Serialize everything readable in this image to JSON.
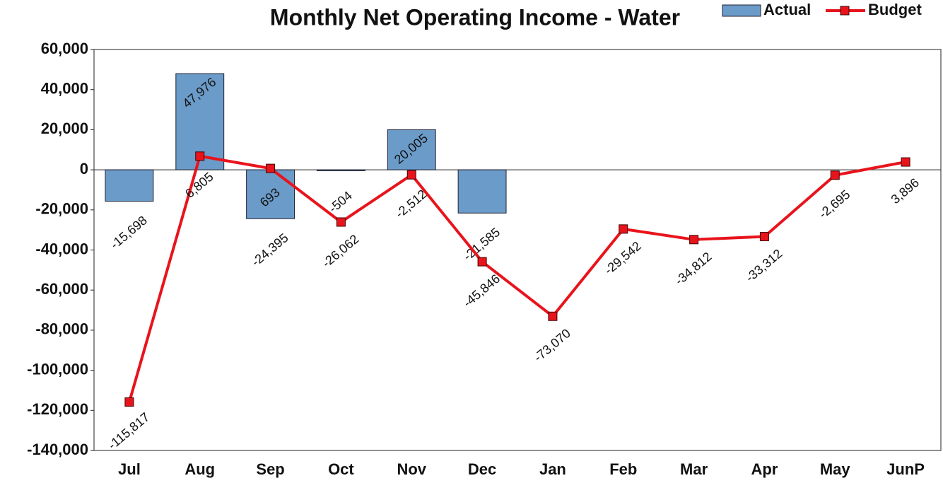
{
  "chart_data": {
    "type": "bar_line",
    "title": "Monthly Net Operating Income - Water",
    "categories": [
      "Jul",
      "Aug",
      "Sep",
      "Oct",
      "Nov",
      "Dec",
      "Jan",
      "Feb",
      "Mar",
      "Apr",
      "May",
      "JunP"
    ],
    "series": [
      {
        "name": "Actual",
        "type": "bar",
        "color": "#6b9bc8",
        "values": [
          -15698,
          47976,
          -24395,
          -504,
          20005,
          -21585,
          null,
          null,
          null,
          null,
          null,
          null
        ],
        "value_labels": [
          "-15,698",
          "47,976",
          "-24,395",
          "-504",
          "20,005",
          "-21,585",
          null,
          null,
          null,
          null,
          null,
          null
        ]
      },
      {
        "name": "Budget",
        "type": "line",
        "color": "#e8141c",
        "values": [
          -115817,
          6805,
          693,
          -26062,
          -2512,
          -45846,
          -73070,
          -29542,
          -34812,
          -33312,
          -2695,
          3896
        ],
        "value_labels": [
          "-115,817",
          "6,805",
          "693",
          "-26,062",
          "-2,512",
          "-45,846",
          "-73,070",
          "-29,542",
          "-34,812",
          "-33,312",
          "-2,695",
          "3,896"
        ]
      }
    ],
    "ylim": [
      -140000,
      60000
    ],
    "yticks": [
      {
        "value": -140000,
        "label": "-140,000"
      },
      {
        "value": -120000,
        "label": "-120,000"
      },
      {
        "value": -100000,
        "label": "-100,000"
      },
      {
        "value": -80000,
        "label": "-80,000"
      },
      {
        "value": -60000,
        "label": "-60,000"
      },
      {
        "value": -40000,
        "label": "-40,000"
      },
      {
        "value": -20000,
        "label": "-20,000"
      },
      {
        "value": 0,
        "label": "0"
      },
      {
        "value": 20000,
        "label": "20,000"
      },
      {
        "value": 40000,
        "label": "40,000"
      },
      {
        "value": 60000,
        "label": "60,000"
      }
    ],
    "grid": false,
    "legend": "top-right"
  }
}
